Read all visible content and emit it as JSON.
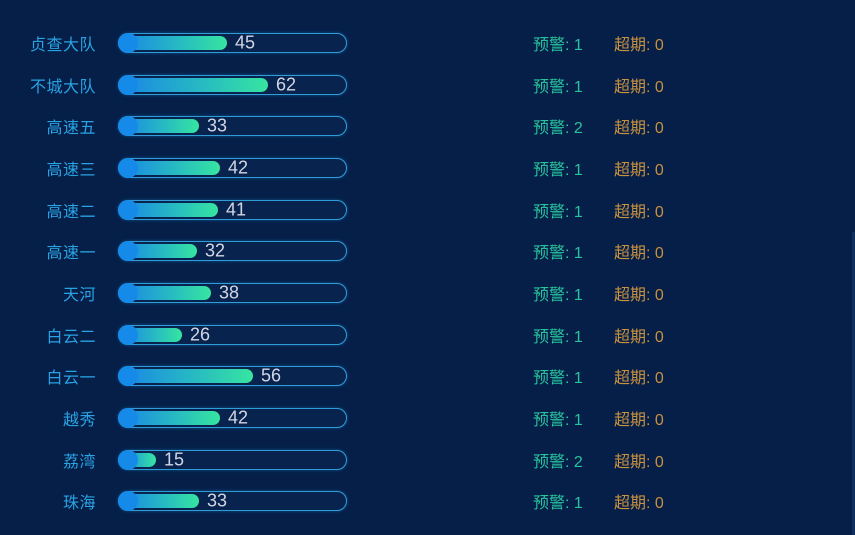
{
  "colors": {
    "bg": "#051f49",
    "label": "#29a3e3",
    "border": "#2f9ed8",
    "track": "#09234f",
    "dot": "#168ae8",
    "grad_start": "#1a86e6",
    "grad_mid": "#27bac2",
    "grad_end": "#36e5a0",
    "value": "#d2d6e4",
    "alert": "#29c29c",
    "overdue": "#c8913e",
    "edge": "#0f2f5f"
  },
  "chart_data": {
    "type": "bar",
    "orientation": "horizontal",
    "categories": [
      "贞查大队",
      "不城大队",
      "高速五",
      "高速三",
      "高速二",
      "高速一",
      "天河",
      "白云二",
      "白云一",
      "越秀",
      "荔湾",
      "珠海"
    ],
    "values": [
      45,
      62,
      33,
      42,
      41,
      32,
      38,
      26,
      56,
      42,
      15,
      33
    ],
    "alerts": [
      1,
      1,
      2,
      1,
      1,
      1,
      1,
      1,
      1,
      1,
      2,
      1
    ],
    "overdues": [
      0,
      0,
      0,
      0,
      0,
      0,
      0,
      0,
      0,
      0,
      0,
      0
    ],
    "alert_label": "预警",
    "overdue_label": "超期",
    "separator": ": ",
    "xlim": [
      0,
      96
    ],
    "value_labels_shown": true,
    "grid": false,
    "legend": "none"
  }
}
